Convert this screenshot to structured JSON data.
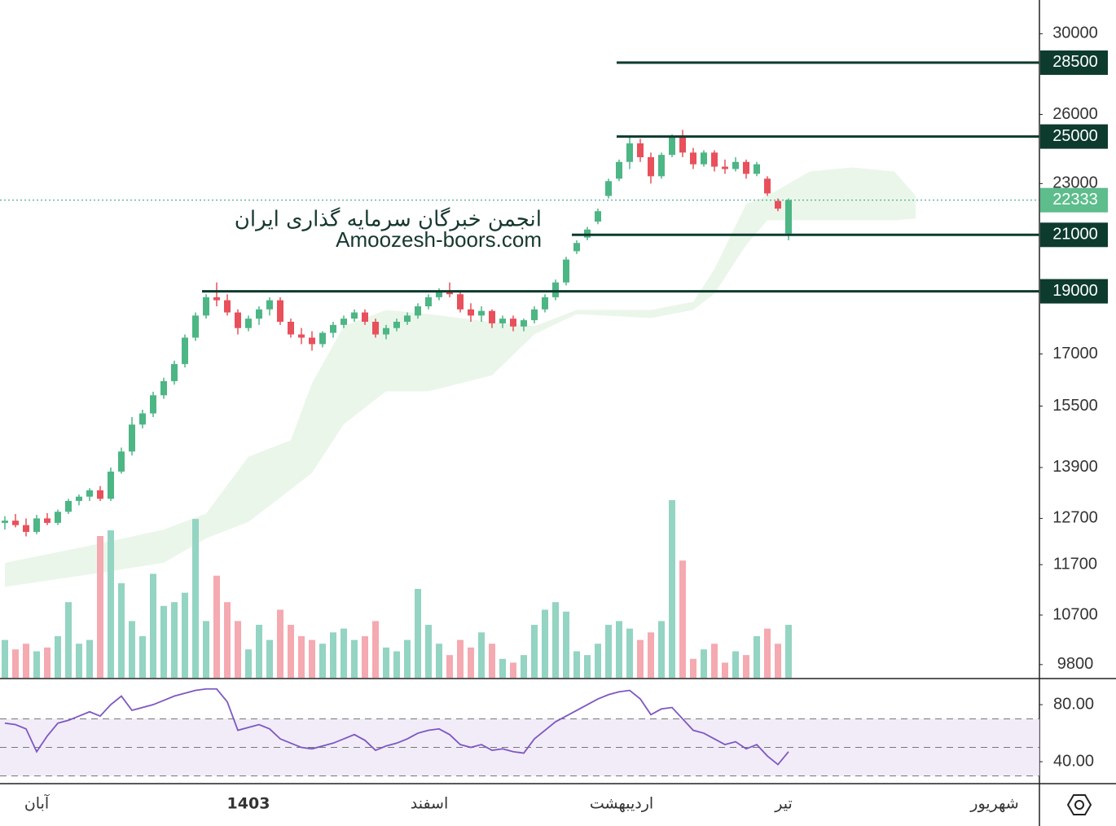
{
  "chart_data": {
    "type": "candlestick",
    "price_scale": "log",
    "ylim": [
      9560,
      31850
    ],
    "yticks": [
      30000,
      26000,
      23000,
      17000,
      15500,
      13900,
      12700,
      11700,
      10700,
      9800
    ],
    "levels": [
      28500,
      25000,
      21000,
      19000
    ],
    "last_price": 22333,
    "colors": {
      "up": "#4cb685",
      "down": "#e8505b",
      "volume_up": "#93d4c2",
      "volume_down": "#f5a9b0",
      "level": "#0d3b2e",
      "last_price": "#5dbd8c",
      "cloud": "#e6f4e6"
    },
    "candles": [
      [
        12600,
        12750,
        12450,
        12650
      ],
      [
        12650,
        12800,
        12500,
        12550
      ],
      [
        12550,
        12700,
        12300,
        12400
      ],
      [
        12400,
        12780,
        12350,
        12700
      ],
      [
        12700,
        12820,
        12550,
        12600
      ],
      [
        12600,
        12900,
        12550,
        12850
      ],
      [
        12850,
        13150,
        12800,
        13100
      ],
      [
        13100,
        13250,
        13000,
        13200
      ],
      [
        13200,
        13400,
        13100,
        13350
      ],
      [
        13350,
        13450,
        13100,
        13150
      ],
      [
        13150,
        13900,
        13100,
        13800
      ],
      [
        13800,
        14400,
        13750,
        14300
      ],
      [
        14300,
        15200,
        14200,
        15000
      ],
      [
        15000,
        15400,
        14900,
        15300
      ],
      [
        15300,
        15900,
        15200,
        15800
      ],
      [
        15800,
        16300,
        15700,
        16200
      ],
      [
        16200,
        16800,
        16100,
        16700
      ],
      [
        16700,
        17600,
        16600,
        17500
      ],
      [
        17500,
        18300,
        17400,
        18200
      ],
      [
        18200,
        18900,
        18100,
        18800
      ],
      [
        18800,
        19300,
        18500,
        18700
      ],
      [
        18700,
        18900,
        18200,
        18300
      ],
      [
        18300,
        18400,
        17600,
        17800
      ],
      [
        17800,
        18200,
        17700,
        18100
      ],
      [
        18100,
        18500,
        17900,
        18400
      ],
      [
        18400,
        18800,
        18200,
        18700
      ],
      [
        18700,
        18800,
        17900,
        18000
      ],
      [
        18000,
        18100,
        17500,
        17600
      ],
      [
        17600,
        17800,
        17300,
        17500
      ],
      [
        17500,
        17700,
        17100,
        17300
      ],
      [
        17300,
        17700,
        17200,
        17650
      ],
      [
        17650,
        18000,
        17500,
        17900
      ],
      [
        17900,
        18200,
        17800,
        18100
      ],
      [
        18100,
        18400,
        18000,
        18300
      ],
      [
        18300,
        18400,
        17900,
        18000
      ],
      [
        18000,
        18100,
        17500,
        17600
      ],
      [
        17600,
        17900,
        17450,
        17800
      ],
      [
        17800,
        18100,
        17700,
        18000
      ],
      [
        18000,
        18300,
        17900,
        18200
      ],
      [
        18200,
        18600,
        18100,
        18500
      ],
      [
        18500,
        18900,
        18400,
        18800
      ],
      [
        18800,
        19100,
        18700,
        19000
      ],
      [
        19000,
        19300,
        18800,
        18900
      ],
      [
        18900,
        19000,
        18300,
        18400
      ],
      [
        18400,
        18600,
        18000,
        18200
      ],
      [
        18200,
        18500,
        18000,
        18350
      ],
      [
        18350,
        18400,
        17800,
        17950
      ],
      [
        17950,
        18200,
        17800,
        18100
      ],
      [
        18100,
        18200,
        17700,
        17850
      ],
      [
        17850,
        18100,
        17700,
        18050
      ],
      [
        18050,
        18500,
        17950,
        18400
      ],
      [
        18400,
        18900,
        18300,
        18800
      ],
      [
        18800,
        19400,
        18700,
        19300
      ],
      [
        19300,
        20200,
        19200,
        20100
      ],
      [
        20400,
        20800,
        20300,
        20700
      ],
      [
        20900,
        21300,
        20800,
        21200
      ],
      [
        21500,
        22000,
        21400,
        21900
      ],
      [
        22500,
        23200,
        22400,
        23100
      ],
      [
        23200,
        24000,
        23100,
        23900
      ],
      [
        23900,
        25000,
        23600,
        24700
      ],
      [
        24700,
        24900,
        23900,
        24100
      ],
      [
        24100,
        24300,
        23000,
        23300
      ],
      [
        23300,
        24300,
        23200,
        24200
      ],
      [
        24200,
        25100,
        24100,
        25000
      ],
      [
        25000,
        25300,
        24100,
        24300
      ],
      [
        24300,
        24500,
        23600,
        23800
      ],
      [
        23800,
        24400,
        23700,
        24300
      ],
      [
        24300,
        24400,
        23500,
        23700
      ],
      [
        23700,
        24000,
        23400,
        23600
      ],
      [
        23600,
        24100,
        23500,
        23900
      ],
      [
        23900,
        24000,
        23200,
        23400
      ],
      [
        23400,
        23900,
        23300,
        23800
      ],
      [
        23200,
        23300,
        22500,
        22600
      ],
      [
        22300,
        22400,
        21900,
        22000
      ],
      [
        21050,
        22400,
        20800,
        22333
      ]
    ],
    "volume": [
      20,
      15,
      18,
      14,
      16,
      22,
      40,
      18,
      20,
      75,
      78,
      50,
      30,
      22,
      55,
      38,
      40,
      45,
      84,
      30,
      54,
      40,
      30,
      15,
      28,
      20,
      36,
      28,
      22,
      20,
      18,
      24,
      26,
      20,
      22,
      30,
      16,
      14,
      20,
      47,
      28,
      18,
      12,
      20,
      16,
      24,
      18,
      10,
      8,
      12,
      28,
      36,
      40,
      35,
      14,
      12,
      18,
      28,
      30,
      26,
      20,
      24,
      30,
      94,
      62,
      10,
      15,
      18,
      8,
      14,
      12,
      22,
      26,
      18,
      28
    ],
    "volume_ylim": [
      0,
      100
    ],
    "cloud": {
      "x": [
        0,
        8,
        15,
        19,
        23,
        27,
        29,
        32,
        36,
        40,
        46,
        50,
        54,
        61,
        65,
        67,
        70,
        72,
        76,
        80,
        84,
        86
      ],
      "upper": [
        11740,
        12100,
        12450,
        12810,
        14170,
        14590,
        16140,
        17860,
        18380,
        18250,
        17990,
        17860,
        18380,
        18380,
        18650,
        19760,
        22180,
        22500,
        23500,
        23670,
        23500,
        22500
      ],
      "lower": [
        11250,
        11500,
        11740,
        12260,
        12620,
        13370,
        13770,
        15010,
        15910,
        15910,
        16370,
        17600,
        18250,
        18120,
        18380,
        18920,
        20630,
        21550,
        21550,
        21550,
        21550,
        21610
      ]
    },
    "rsi": {
      "values": [
        67,
        66,
        63,
        47,
        58,
        67,
        69,
        72,
        75,
        72,
        80,
        86,
        76,
        78,
        80,
        83,
        86,
        88,
        90,
        91,
        91,
        82,
        62,
        64,
        66,
        63,
        56,
        53,
        50,
        49,
        51,
        53,
        56,
        59,
        55,
        48,
        51,
        53,
        56,
        60,
        62,
        63,
        59,
        52,
        50,
        52,
        48,
        49,
        47,
        46,
        56,
        62,
        68,
        72,
        76,
        80,
        84,
        87,
        89,
        90,
        84,
        73,
        77,
        78,
        70,
        62,
        60,
        56,
        52,
        54,
        49,
        52,
        44,
        38,
        47
      ],
      "ylim": [
        24.6,
        98.3
      ],
      "yticks": [
        {
          "value": 80,
          "label": "80.00"
        },
        {
          "value": 40,
          "label": "40.00"
        }
      ],
      "levels": [
        70,
        50,
        30
      ],
      "color": "#7e57c2"
    },
    "time_labels": [
      "آبان",
      "1403",
      "اسفند",
      "اردیبهشت",
      "تیر",
      "شهریور"
    ]
  },
  "watermark": {
    "title": "انجمن خبرگان سرمایه گذاری ایران",
    "url": "Amoozesh-boors.com"
  }
}
